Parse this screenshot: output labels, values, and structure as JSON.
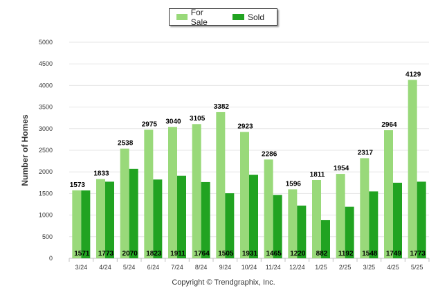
{
  "chart_data": {
    "type": "bar",
    "ylabel": "Number of Homes",
    "xlabel": "",
    "ylim": [
      0,
      5000
    ],
    "yticks": [
      0,
      500,
      1000,
      1500,
      2000,
      2500,
      3000,
      3500,
      4000,
      4500,
      5000
    ],
    "grid": true,
    "legend_position": "top-center",
    "categories": [
      "3/24",
      "4/24",
      "5/24",
      "6/24",
      "7/24",
      "8/24",
      "9/24",
      "10/24",
      "11/24",
      "12/24",
      "1/25",
      "2/25",
      "3/25",
      "4/25",
      "5/25"
    ],
    "series": [
      {
        "name": "For Sale",
        "color": "#99d97a",
        "values": [
          1573,
          1833,
          2538,
          2975,
          3040,
          3105,
          3382,
          2923,
          2286,
          1596,
          1811,
          1954,
          2317,
          2964,
          4129
        ]
      },
      {
        "name": "Sold",
        "color": "#21a321",
        "values": [
          1571,
          1773,
          2070,
          1823,
          1911,
          1764,
          1505,
          1931,
          1465,
          1220,
          882,
          1192,
          1548,
          1749,
          1773
        ]
      }
    ]
  },
  "footer": "Copyright © Trendgraphix, Inc."
}
